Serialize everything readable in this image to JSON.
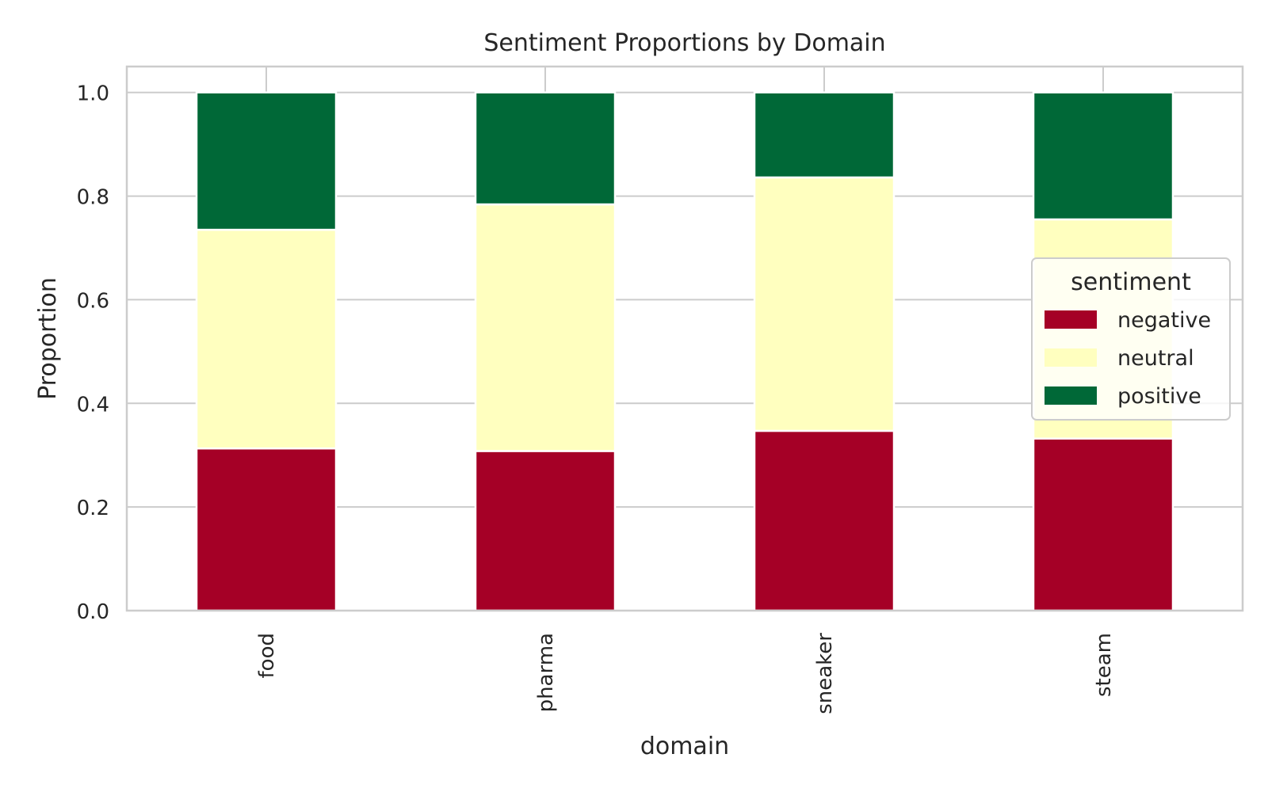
{
  "chart_data": {
    "type": "bar",
    "stacked": true,
    "title": "Sentiment Proportions by Domain",
    "xlabel": "domain",
    "ylabel": "Proportion",
    "categories": [
      "food",
      "pharma",
      "sneaker",
      "steam"
    ],
    "series": [
      {
        "name": "negative",
        "color": "#a50026",
        "values": [
          0.313,
          0.308,
          0.347,
          0.332
        ]
      },
      {
        "name": "neutral",
        "color": "#ffffbf",
        "values": [
          0.422,
          0.476,
          0.489,
          0.423
        ]
      },
      {
        "name": "positive",
        "color": "#006837",
        "values": [
          0.265,
          0.216,
          0.164,
          0.245
        ]
      }
    ],
    "ylim": [
      0,
      1.05
    ],
    "yticks": [
      "0.0",
      "0.2",
      "0.4",
      "0.6",
      "0.8",
      "1.0"
    ],
    "grid": true,
    "legend": {
      "title": "sentiment",
      "placement": "center-right"
    }
  }
}
